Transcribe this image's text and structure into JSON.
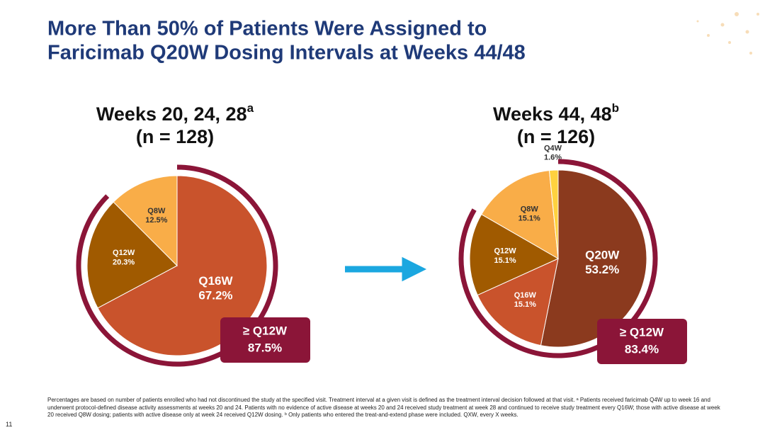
{
  "title_lines": [
    "More Than 50% of Patients Were Assigned to",
    "Faricimab Q20W Dosing Intervals at Weeks 44/48"
  ],
  "chart_data": [
    {
      "type": "pie",
      "title": "Weeks 20, 24, 28",
      "title_note": "a",
      "subtitle": "(n = 128)",
      "categories": [
        "Q16W",
        "Q12W",
        "Q8W"
      ],
      "values": [
        67.2,
        20.3,
        12.5
      ],
      "value_labels": [
        "67.2%",
        "20.3%",
        "12.5%"
      ],
      "colors": [
        "#c9532c",
        "#a05a00",
        "#f9ad48"
      ],
      "bracket": {
        "name": "≥ Q12W",
        "value": 87.5,
        "value_label": "87.5%",
        "color": "#8b1538"
      }
    },
    {
      "type": "pie",
      "title": "Weeks 44, 48",
      "title_note": "b",
      "subtitle": "(n = 126)",
      "categories": [
        "Q20W",
        "Q16W",
        "Q12W",
        "Q8W",
        "Q4W"
      ],
      "values": [
        53.2,
        15.1,
        15.1,
        15.1,
        1.6
      ],
      "value_labels": [
        "53.2%",
        "15.1%",
        "15.1%",
        "15.1%",
        "1.6%"
      ],
      "colors": [
        "#8b3a1e",
        "#c9532c",
        "#a05a00",
        "#f9ad48",
        "#ffd23f"
      ],
      "bracket": {
        "name": "≥ Q12W",
        "value": 83.4,
        "value_label": "83.4%",
        "color": "#8b1538"
      }
    }
  ],
  "footnote": "Percentages are based on number of patients enrolled who had not discontinued the study at the specified visit. Treatment interval at a given visit is defined as the treatment interval decision followed at that visit. ᵃ Patients received faricimab Q4W up to week 16 and underwent protocol-defined disease activity assessments at weeks 20 and 24. Patients with no evidence of active disease at weeks 20 and 24 received study treatment at week 28 and continued to receive study treatment every Q16W; those with active disease at week 20 received Q8W dosing; patients with active disease only at week 24 received Q12W dosing. ᵇ Only patients who entered the treat-and-extend phase were included. QXW, every X weeks.",
  "page_number": "11"
}
